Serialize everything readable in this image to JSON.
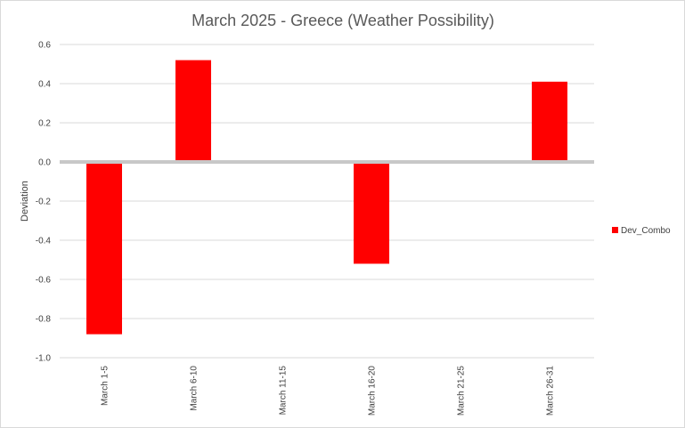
{
  "chart_data": {
    "type": "bar",
    "title": "March 2025 - Greece (Weather Possibility)",
    "xlabel": "",
    "ylabel": "Deviation",
    "categories": [
      "March 1-5",
      "March 6-10",
      "March 11-15",
      "March 16-20",
      "March 21-25",
      "March 26-31"
    ],
    "series": [
      {
        "name": "Dev_Combo",
        "color": "#ff0000",
        "values": [
          -0.88,
          0.52,
          0,
          -0.52,
          0,
          0.41
        ]
      }
    ],
    "ylim": [
      -1.0,
      0.6
    ],
    "yticks": [
      "0.6",
      "0.4",
      "0.2",
      "0.0",
      "-0.2",
      "-0.4",
      "-0.6",
      "-0.8",
      "-1.0"
    ],
    "ytick_values": [
      0.6,
      0.4,
      0.2,
      0.0,
      -0.2,
      -0.4,
      -0.6,
      -0.8,
      -1.0
    ],
    "grid": true,
    "legend_position": "right"
  }
}
